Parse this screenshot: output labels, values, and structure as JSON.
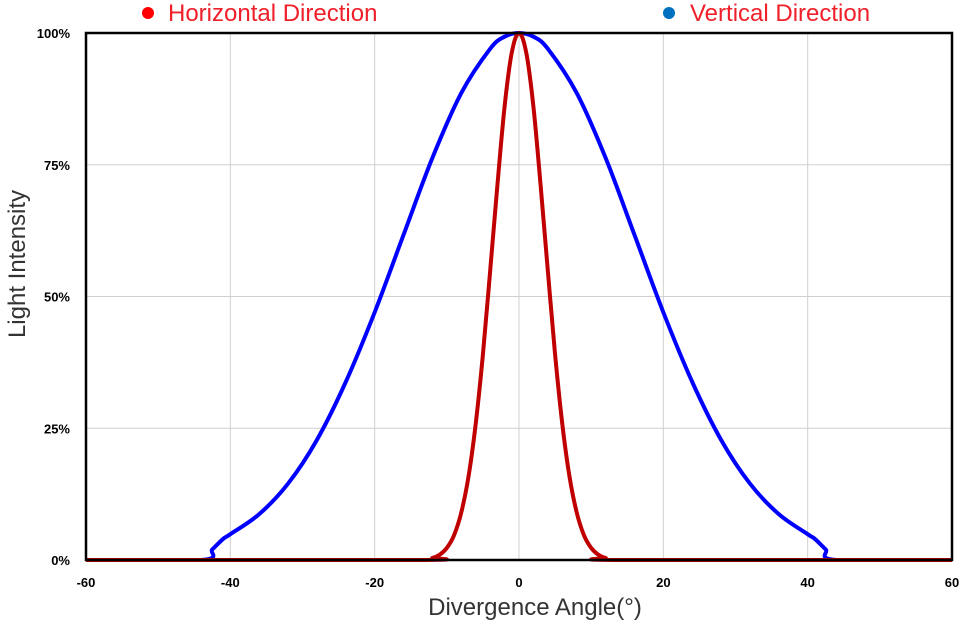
{
  "chart_data": {
    "type": "line",
    "title": "",
    "xlabel": "Divergence Angle(°)",
    "ylabel": "Light Intensity",
    "xlim": [
      -60,
      60
    ],
    "ylim": [
      0,
      100
    ],
    "grid": true,
    "legend_position": "top",
    "xticks": [
      "-60",
      "-40",
      "-20",
      "0",
      "20",
      "40",
      "60"
    ],
    "xtick_values": [
      -60,
      -40,
      -20,
      0,
      20,
      40,
      60
    ],
    "yticks": [
      "0%",
      "25%",
      "50%",
      "75%",
      "100%"
    ],
    "ytick_values": [
      0,
      25,
      50,
      75,
      100
    ],
    "series": [
      {
        "name": "Horizontal Direction",
        "color": "#c00000",
        "legend_marker_color": "#ff0000",
        "x": [
          -60,
          -14,
          -12,
          -11,
          -10,
          -9,
          -8,
          -7,
          -6,
          -5,
          -4,
          -3,
          -2,
          -1,
          0,
          1,
          2,
          3,
          4,
          5,
          6,
          7,
          8,
          9,
          10,
          11,
          12,
          14,
          60
        ],
        "y": [
          0,
          0,
          0.4,
          1,
          2.3,
          4.7,
          9,
          15.8,
          25.8,
          39,
          54.8,
          71,
          86,
          96.3,
          100,
          96.3,
          86,
          71,
          54.8,
          39,
          25.8,
          15.8,
          9,
          4.7,
          2.3,
          1,
          0.4,
          0,
          0
        ]
      },
      {
        "name": "Vertical Direction",
        "color": "#0000ff",
        "legend_marker_color": "#0070c0",
        "x": [
          -60,
          -44,
          -42.5,
          -41,
          -40,
          -36,
          -32,
          -28,
          -24,
          -20,
          -16,
          -12,
          -8,
          -4,
          -2,
          0,
          2,
          4,
          8,
          12,
          16,
          20,
          24,
          28,
          32,
          36,
          40,
          41,
          42.5,
          44,
          60
        ],
        "y": [
          0,
          0,
          2,
          4,
          4.9,
          8.7,
          14.5,
          22.8,
          33.8,
          47,
          61.7,
          76.3,
          88.6,
          97,
          99.3,
          100,
          99.3,
          97,
          88.6,
          76.3,
          61.7,
          47,
          33.8,
          22.8,
          14.5,
          8.7,
          4.9,
          4,
          2,
          0,
          0
        ]
      }
    ]
  }
}
